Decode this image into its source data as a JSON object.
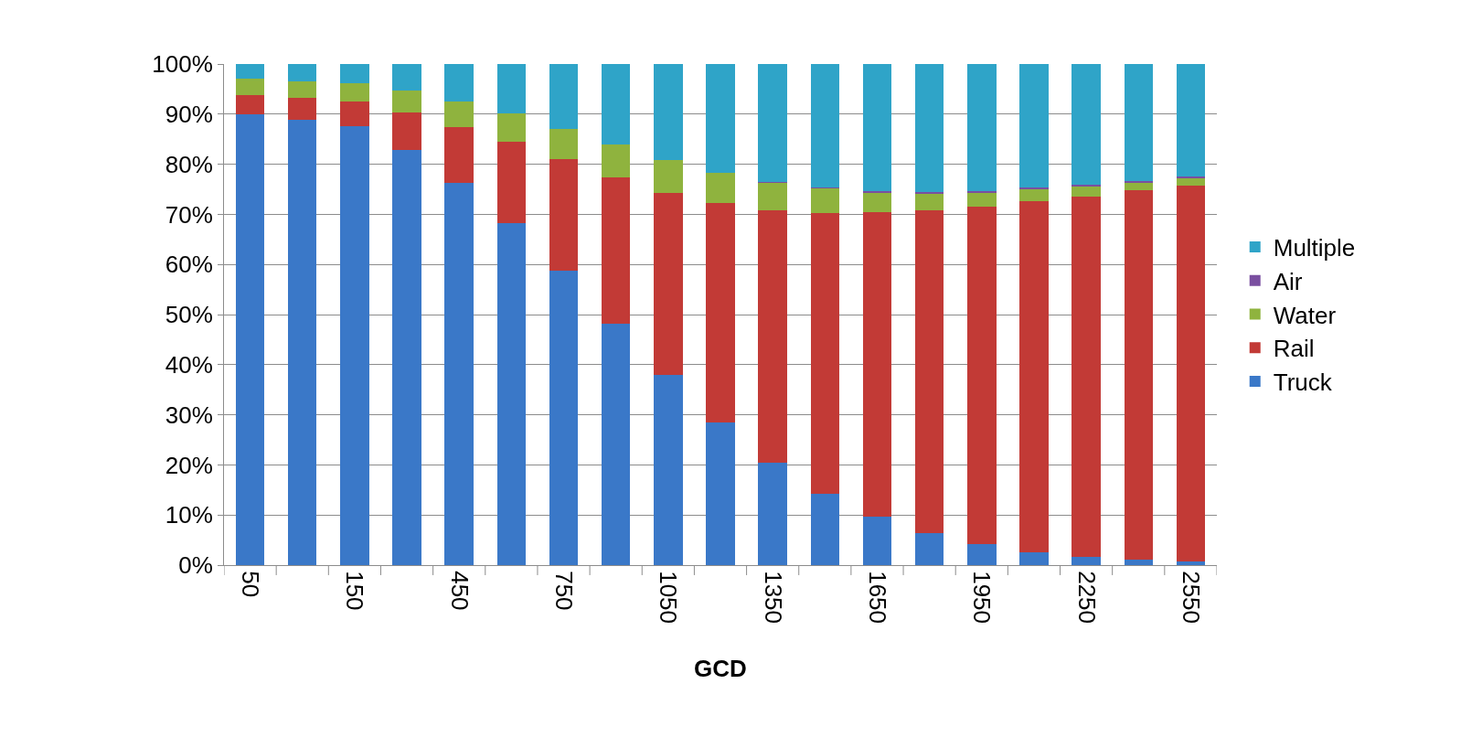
{
  "chart_data": {
    "type": "bar",
    "stacked": true,
    "xlabel": "GCD",
    "categories": [
      "50",
      null,
      "150",
      null,
      "450",
      null,
      "750",
      null,
      "1050",
      null,
      "1350",
      null,
      "1650",
      null,
      "1950",
      null,
      "2250",
      null,
      "2550"
    ],
    "series": [
      {
        "name": "Truck",
        "color": "#3a78c8",
        "values": [
          90,
          88.8,
          87.6,
          82.9,
          76.3,
          68.3,
          58.8,
          48.2,
          38,
          28.5,
          20.5,
          14.2,
          9.7,
          6.3,
          4.2,
          2.5,
          1.7,
          1.1,
          0.7
        ]
      },
      {
        "name": "Rail",
        "color": "#c23a36",
        "values": [
          3.8,
          4.4,
          4.9,
          7.4,
          11.2,
          16.1,
          22.2,
          29.2,
          36.2,
          43.7,
          50.3,
          56,
          60.7,
          64.5,
          67.4,
          70.1,
          71.9,
          73.8,
          75.1
        ]
      },
      {
        "name": "Water",
        "color": "#8fb33e",
        "values": [
          3.3,
          3.4,
          3.7,
          4.5,
          5.1,
          5.7,
          6.1,
          6.6,
          6.6,
          6,
          5.6,
          5,
          3.9,
          3.4,
          2.8,
          2.4,
          2,
          1.4,
          1.4
        ]
      },
      {
        "name": "Air",
        "color": "#7a4fa0",
        "values": [
          0,
          0,
          0,
          0,
          0,
          0,
          0,
          0,
          0,
          0,
          0.1,
          0.1,
          0.3,
          0.2,
          0.2,
          0.3,
          0.3,
          0.4,
          0.4
        ]
      },
      {
        "name": "Multiple",
        "color": "#2fa4c8",
        "values": [
          2.9,
          3.4,
          3.8,
          5.2,
          7.4,
          9.9,
          12.9,
          16,
          19.2,
          21.8,
          23.5,
          24.7,
          25.4,
          25.6,
          25.4,
          24.7,
          24.1,
          23.3,
          22.4
        ]
      }
    ],
    "ylim": [
      0,
      100
    ],
    "yticks": [
      {
        "value": 0,
        "label": "0%"
      },
      {
        "value": 10,
        "label": "10%"
      },
      {
        "value": 20,
        "label": "20%"
      },
      {
        "value": 30,
        "label": "30%"
      },
      {
        "value": 40,
        "label": "40%"
      },
      {
        "value": 50,
        "label": "50%"
      },
      {
        "value": 60,
        "label": "60%"
      },
      {
        "value": 70,
        "label": "70%"
      },
      {
        "value": 80,
        "label": "80%"
      },
      {
        "value": 90,
        "label": "90%"
      },
      {
        "value": 100,
        "label": "100%"
      }
    ],
    "grid": "y",
    "legend": "right"
  }
}
